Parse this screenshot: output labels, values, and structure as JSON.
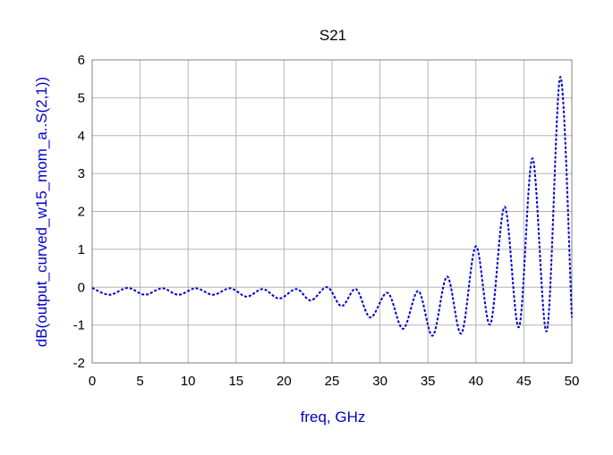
{
  "chart_data": {
    "type": "line",
    "title": "S21",
    "x_label": "freq, GHz",
    "y_label": "dB(output_curved_w15_mom_a..S(2,1))",
    "x": [
      0,
      1.8,
      3.7,
      5.5,
      7.3,
      9.0,
      10.8,
      12.6,
      14.4,
      16.1,
      17.8,
      19.5,
      21.3,
      22.8,
      24.5,
      26.0,
      27.5,
      29.0,
      30.8,
      32.4,
      34.0,
      35.5,
      37.0,
      38.5,
      40.0,
      41.5,
      43.0,
      44.5,
      45.9,
      47.4,
      48.8,
      50
    ],
    "series": [
      {
        "name": "dB(output_curved_w15_mom_a..S(2,1))",
        "color": "#0000cc",
        "values": [
          -0.02,
          -0.2,
          -0.02,
          -0.2,
          -0.03,
          -0.2,
          -0.03,
          -0.2,
          -0.03,
          -0.25,
          -0.05,
          -0.3,
          -0.05,
          -0.35,
          0.0,
          -0.5,
          -0.05,
          -0.8,
          -0.15,
          -1.1,
          -0.1,
          -1.28,
          0.28,
          -1.22,
          1.08,
          -0.98,
          2.12,
          -1.05,
          3.4,
          -1.15,
          5.55,
          -0.8
        ]
      }
    ],
    "xlim": [
      0,
      50
    ],
    "xticks": [
      0,
      5,
      10,
      15,
      20,
      25,
      30,
      35,
      40,
      45,
      50
    ],
    "ylim": [
      -2,
      6
    ],
    "yticks": [
      -2,
      -1,
      0,
      1,
      2,
      3,
      4,
      5,
      6
    ],
    "grid": true
  }
}
